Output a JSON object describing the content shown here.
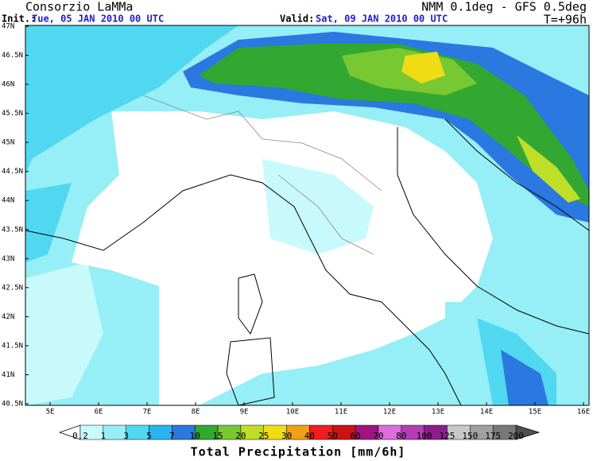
{
  "header": {
    "title": "Consorzio LaMMa",
    "init_label": "Init.:",
    "init_time": "Tue, 05 JAN 2010  00 UTC",
    "valid_label": "Valid:",
    "valid_time": "Sat, 09 JAN 2010  00 UTC",
    "model": "NMM 0.1deg - GFS 0.5deg",
    "forecast_step": "T=+96h"
  },
  "map": {
    "lat_labels": [
      "47N",
      "46.5N",
      "46N",
      "45.5N",
      "45N",
      "44.5N",
      "44N",
      "43.5N",
      "43N",
      "42.5N",
      "42N",
      "41.5N",
      "41N",
      "40.5N"
    ],
    "lon_labels": [
      "5E",
      "6E",
      "7E",
      "8E",
      "9E",
      "10E",
      "11E",
      "12E",
      "13E",
      "14E",
      "15E",
      "16E"
    ]
  },
  "colorbar": {
    "title": "Total Precipitation [mm/6h]",
    "labels": [
      "0.2",
      "1",
      "3",
      "5",
      "7",
      "10",
      "15",
      "20",
      "25",
      "30",
      "40",
      "50",
      "60",
      "70",
      "80",
      "100",
      "125",
      "150",
      "175",
      "200"
    ],
    "colors": [
      "#ffffff",
      "#c8fafc",
      "#96eef6",
      "#50d8f0",
      "#28b4f0",
      "#2a78e0",
      "#32a832",
      "#78c832",
      "#bede28",
      "#f0dc14",
      "#f0a014",
      "#f01e1e",
      "#c81414",
      "#a01482",
      "#dc6edc",
      "#b43cb4",
      "#8c1e8c",
      "#c8c8c8",
      "#a0a0a0",
      "#787878",
      "#505050"
    ]
  }
}
